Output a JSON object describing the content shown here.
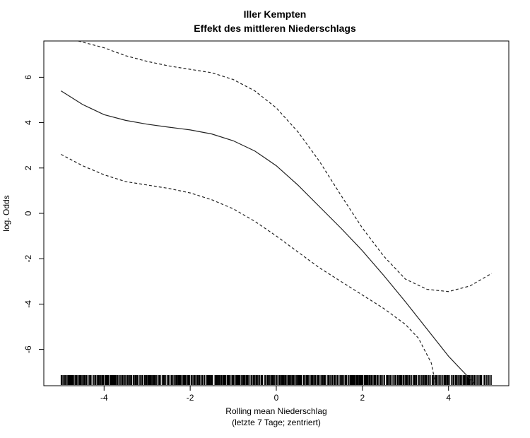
{
  "chart_data": {
    "type": "line",
    "title": "Iller Kempten",
    "subtitle": "Effekt des mittleren Niederschlags",
    "xlabel": "Rolling mean Niederschlag",
    "xlabel_sub": "(letzte 7 Tage; zentriert)",
    "ylabel": "log. Odds",
    "xlim": [
      -5.4,
      5.4
    ],
    "ylim": [
      -7.6,
      7.6
    ],
    "x_ticks": [
      -4,
      -2,
      0,
      2,
      4
    ],
    "y_ticks": [
      -6,
      -4,
      -2,
      0,
      2,
      4,
      6
    ],
    "grid": false,
    "legend": "none",
    "series": [
      {
        "style": "solid",
        "x": [
          -5.0,
          -4.5,
          -4.0,
          -3.5,
          -3.0,
          -2.5,
          -2.0,
          -1.5,
          -1.0,
          -0.5,
          0.0,
          0.5,
          1.0,
          1.5,
          2.0,
          2.5,
          3.0,
          3.5,
          4.0,
          4.5,
          4.6
        ],
        "y": [
          5.4,
          4.8,
          4.35,
          4.1,
          3.93,
          3.8,
          3.68,
          3.5,
          3.2,
          2.75,
          2.1,
          1.25,
          0.3,
          -0.65,
          -1.65,
          -2.75,
          -3.9,
          -5.1,
          -6.3,
          -7.3,
          -7.55
        ]
      },
      {
        "style": "dashed",
        "x": [
          -4.6,
          -4.0,
          -3.5,
          -3.0,
          -2.5,
          -2.0,
          -1.5,
          -1.0,
          -0.5,
          0.0,
          0.5,
          1.0,
          1.5,
          2.0,
          2.5,
          3.0,
          3.5,
          4.0,
          4.5,
          5.0
        ],
        "y": [
          7.6,
          7.3,
          6.95,
          6.7,
          6.5,
          6.35,
          6.2,
          5.9,
          5.4,
          4.65,
          3.6,
          2.3,
          0.8,
          -0.65,
          -1.9,
          -2.9,
          -3.35,
          -3.45,
          -3.2,
          -2.65
        ]
      },
      {
        "style": "dashed",
        "x": [
          -5.0,
          -4.5,
          -4.0,
          -3.5,
          -3.0,
          -2.5,
          -2.0,
          -1.5,
          -1.0,
          -0.5,
          0.0,
          0.5,
          1.0,
          1.5,
          2.0,
          2.5,
          3.0,
          3.3,
          3.6,
          3.7
        ],
        "y": [
          2.6,
          2.1,
          1.7,
          1.4,
          1.25,
          1.1,
          0.9,
          0.6,
          0.2,
          -0.35,
          -1.0,
          -1.7,
          -2.4,
          -3.0,
          -3.6,
          -4.2,
          -4.9,
          -5.5,
          -6.6,
          -7.55
        ]
      }
    ],
    "rug_range": [
      -5.0,
      5.0
    ]
  }
}
